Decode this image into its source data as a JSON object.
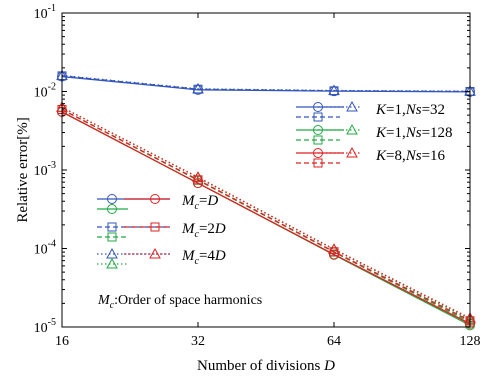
{
  "chart_data": {
    "type": "line",
    "xlabel": {
      "text": "Number of divisions ",
      "var": "D"
    },
    "ylabel": "Relative error[%]",
    "xscale": "log2",
    "yscale": "log",
    "xlim": [
      16,
      128
    ],
    "ylim": [
      1e-05,
      0.1
    ],
    "x": [
      16,
      32,
      64,
      128
    ],
    "xticks": [
      "16",
      "32",
      "64",
      "128"
    ],
    "yticks": [
      {
        "base": "10",
        "exp": "-1",
        "value": 0.1
      },
      {
        "base": "10",
        "exp": "-2",
        "value": 0.01
      },
      {
        "base": "10",
        "exp": "-3",
        "value": 0.001
      },
      {
        "base": "10",
        "exp": "-4",
        "value": 0.0001
      },
      {
        "base": "10",
        "exp": "-5",
        "value": 1e-05
      }
    ],
    "grid": false,
    "series": [
      {
        "color": "#3355bb",
        "style": "solid",
        "marker": "circle",
        "legend": "K=1,Ns=32",
        "mc": "Mc=D",
        "values": [
          0.0155,
          0.0105,
          0.0101,
          0.0099
        ]
      },
      {
        "color": "#3355bb",
        "style": "dashed",
        "marker": "square",
        "legend": "K=1,Ns=32",
        "mc": "Mc=2D",
        "values": [
          0.0158,
          0.0107,
          0.0102,
          0.01
        ]
      },
      {
        "color": "#3355bb",
        "style": "dotted",
        "marker": "triangle",
        "legend": "K=1,Ns=32",
        "mc": "Mc=4D",
        "values": [
          0.016,
          0.0108,
          0.0103,
          0.0101
        ]
      },
      {
        "color": "#22aa44",
        "style": "solid",
        "marker": "circle",
        "legend": "K=1,Ns=128",
        "mc": "Mc=D",
        "values": [
          0.0055,
          0.00068,
          8.3e-05,
          1.05e-05
        ]
      },
      {
        "color": "#22aa44",
        "style": "dashed",
        "marker": "square",
        "legend": "K=1,Ns=128",
        "mc": "Mc=2D",
        "values": [
          0.0059,
          0.00074,
          9e-05,
          1.15e-05
        ]
      },
      {
        "color": "#22aa44",
        "style": "dotted",
        "marker": "triangle",
        "legend": "K=1,Ns=128",
        "mc": "Mc=4D",
        "values": [
          0.0063,
          0.0008,
          9.7e-05,
          1.25e-05
        ]
      },
      {
        "color": "#dd2222",
        "style": "solid",
        "marker": "circle",
        "legend": "K=8,Ns=16",
        "mc": "Mc=D",
        "values": [
          0.0055,
          0.00068,
          8.4e-05,
          1.1e-05
        ]
      },
      {
        "color": "#dd2222",
        "style": "dashed",
        "marker": "square",
        "legend": "K=8,Ns=16",
        "mc": "Mc=2D",
        "values": [
          0.0059,
          0.00075,
          9.1e-05,
          1.2e-05
        ]
      },
      {
        "color": "#dd2222",
        "style": "dotted",
        "marker": "triangle",
        "legend": "K=8,Ns=16",
        "mc": "Mc=4D",
        "values": [
          0.0063,
          0.00081,
          9.8e-05,
          1.3e-05
        ]
      }
    ],
    "legend_color": {
      "placement": "top-right",
      "entries": [
        {
          "color": "#3355bb",
          "var1": "K",
          "rest1": "=1,",
          "var2": "Ns",
          "rest2": "=32"
        },
        {
          "color": "#22aa44",
          "var1": "K",
          "rest1": "=1,",
          "var2": "Ns",
          "rest2": "=128"
        },
        {
          "color": "#dd2222",
          "var1": "K",
          "rest1": "=8,",
          "var2": "Ns",
          "rest2": "=16"
        }
      ]
    },
    "legend_style": {
      "placement": "left",
      "entries": [
        {
          "style": "solid",
          "marker": "circle",
          "base": "M",
          "sub": "c",
          "eq": "=",
          "coef": "",
          "var": "D"
        },
        {
          "style": "dashed",
          "marker": "square",
          "base": "M",
          "sub": "c",
          "eq": "=",
          "coef": "2",
          "var": "D"
        },
        {
          "style": "dotted",
          "marker": "triangle",
          "base": "M",
          "sub": "c",
          "eq": "=",
          "coef": "4",
          "var": "D"
        }
      ]
    },
    "annotation": {
      "base": "M",
      "sub": "c",
      "text": ":Order of space harmonics"
    }
  }
}
